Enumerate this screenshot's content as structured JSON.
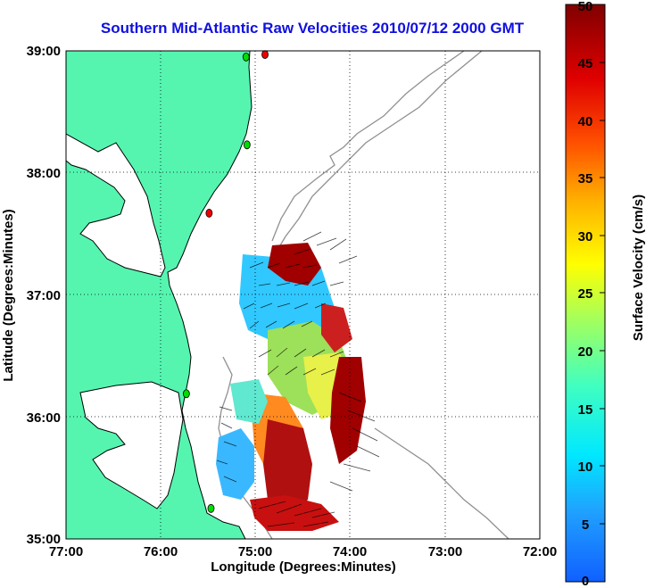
{
  "title": "Southern Mid-Atlantic Raw Velocities 2010/07/12 2000 GMT",
  "axes": {
    "x_label": "Longitude (Degrees:Minutes)",
    "y_label": "Latitude (Degrees:Minutes)",
    "x_ticks": [
      "77:00",
      "76:00",
      "75:00",
      "74:00",
      "73:00",
      "72:00"
    ],
    "y_ticks": [
      "39:00",
      "38:00",
      "37:00",
      "36:00",
      "35:00"
    ]
  },
  "colorbar": {
    "label": "Surface Velocity (cm/s)",
    "ticks": [
      "50",
      "45",
      "40",
      "35",
      "30",
      "25",
      "20",
      "15",
      "10",
      "5",
      "0"
    ],
    "range": [
      0,
      50
    ],
    "colormap": [
      "#1060ff",
      "#20a0ff",
      "#00e8ff",
      "#40ffc0",
      "#a0ff60",
      "#ffff00",
      "#ffb000",
      "#ff5000",
      "#e00000",
      "#800000"
    ]
  },
  "colors": {
    "land": "#55f5b0",
    "coast": "#000000",
    "bathymetry": "#909090",
    "grid": "#000000",
    "title": "#1010e0",
    "station_active": "#00dd00",
    "station_inactive": "#ee0000"
  },
  "map": {
    "lon_range": [
      -77,
      -72
    ],
    "lat_range": [
      35,
      39
    ],
    "gridlines": true
  },
  "stations": [
    {
      "lon": -74.9,
      "lat": 38.97,
      "status": "inactive"
    },
    {
      "lon": -75.1,
      "lat": 38.95,
      "status": "active"
    },
    {
      "lon": -75.09,
      "lat": 38.23,
      "status": "active"
    },
    {
      "lon": -75.49,
      "lat": 37.67,
      "status": "inactive"
    },
    {
      "lon": -75.73,
      "lat": 36.19,
      "status": "active"
    },
    {
      "lon": -75.47,
      "lat": 35.25,
      "status": "active"
    }
  ]
}
